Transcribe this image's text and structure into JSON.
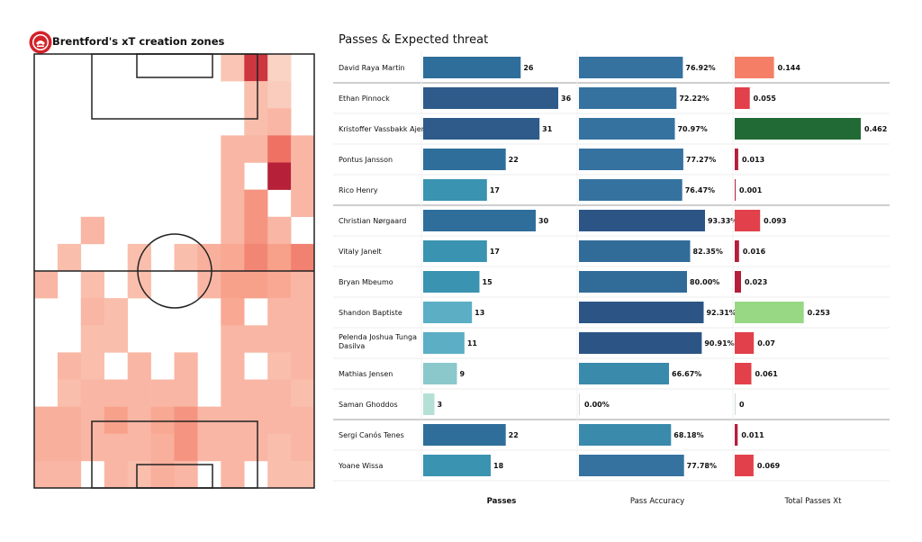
{
  "left_title": "Brentford's xT creation zones",
  "right_title": "Passes & Expected threat",
  "chart_data": [
    {
      "type": "heatmap",
      "title": "Brentford's xT creation zones",
      "grid_cols": 12,
      "grid_rows": 16,
      "values": [
        [
          0,
          0,
          0,
          0,
          0,
          0,
          0,
          0,
          0.25,
          0.88,
          0.15,
          0
        ],
        [
          0,
          0,
          0,
          0,
          0,
          0,
          0,
          0,
          0,
          0.3,
          0.2,
          0
        ],
        [
          0,
          0,
          0,
          0,
          0,
          0,
          0,
          0,
          0,
          0.3,
          0.35,
          0
        ],
        [
          0,
          0,
          0,
          0,
          0,
          0,
          0,
          0,
          0.35,
          0.35,
          0.68,
          0.35
        ],
        [
          0,
          0,
          0,
          0,
          0,
          0,
          0,
          0,
          0.35,
          0,
          0.95,
          0.35
        ],
        [
          0,
          0,
          0,
          0,
          0,
          0,
          0,
          0,
          0.35,
          0.55,
          0,
          0.35
        ],
        [
          0,
          0,
          0.35,
          0,
          0,
          0,
          0,
          0,
          0.35,
          0.55,
          0.35,
          0
        ],
        [
          0,
          0.3,
          0,
          0,
          0.3,
          0,
          0.3,
          0.4,
          0.45,
          0.6,
          0.5,
          0.62
        ],
        [
          0.35,
          0,
          0.3,
          0,
          0.3,
          0,
          0,
          0.35,
          0.5,
          0.5,
          0.45,
          0.35
        ],
        [
          0,
          0,
          0.35,
          0.3,
          0,
          0,
          0,
          0,
          0.45,
          0,
          0.35,
          0.35
        ],
        [
          0,
          0,
          0.3,
          0.3,
          0,
          0,
          0,
          0,
          0.35,
          0.35,
          0.35,
          0.35
        ],
        [
          0,
          0.35,
          0.3,
          0,
          0.35,
          0,
          0.35,
          0,
          0.35,
          0,
          0.3,
          0.35
        ],
        [
          0,
          0.3,
          0.35,
          0.35,
          0.35,
          0.35,
          0.35,
          0,
          0.35,
          0.35,
          0.35,
          0.3
        ],
        [
          0.4,
          0.4,
          0.35,
          0.5,
          0.35,
          0.45,
          0.55,
          0.35,
          0.35,
          0.35,
          0.35,
          0.35
        ],
        [
          0.4,
          0.4,
          0.35,
          0.35,
          0.35,
          0.4,
          0.55,
          0.35,
          0.35,
          0.35,
          0.3,
          0.35
        ],
        [
          0.35,
          0.35,
          0,
          0.35,
          0.3,
          0.4,
          0.35,
          0,
          0.35,
          0,
          0.3,
          0.3
        ]
      ],
      "values_lower": [
        [
          0.35,
          0.35,
          0,
          0.35,
          0.35,
          0.35,
          0.4,
          0,
          0.35,
          0,
          0.35,
          0.35
        ],
        [
          0.35,
          0.35,
          0.35,
          0.35,
          0.35,
          0,
          0.35,
          0,
          0.35,
          0.35,
          0.35,
          0.35
        ],
        [
          0,
          0.35,
          0.35,
          0.35,
          0.35,
          0,
          0.35,
          0.35,
          0,
          0,
          0.3,
          0.35
        ],
        [
          0.35,
          0.35,
          0,
          0.35,
          0.35,
          0.45,
          0.35,
          0.35,
          0.35,
          0.35,
          0.35,
          0.35
        ],
        [
          0.35,
          0.3,
          0.35,
          0.35,
          0.4,
          0.4,
          0.35,
          0.35,
          0.35,
          0,
          0.35,
          0.35
        ],
        [
          0.35,
          0,
          0.35,
          0.35,
          0.4,
          0.35,
          0.35,
          0.35,
          0.35,
          0,
          0.35,
          0.35
        ],
        [
          0.35,
          0.35,
          0.35,
          0.35,
          0.35,
          0.35,
          0.35,
          0.35,
          0.3,
          0,
          0.3,
          0.35
        ],
        [
          0,
          0.35,
          0.35,
          0.35,
          0.35,
          0.35,
          0.4,
          0.35,
          0,
          0,
          0.35,
          0
        ],
        [
          0.35,
          0.35,
          0,
          0.3,
          0.3,
          0.35,
          0.35,
          0.4,
          0.35,
          0,
          0.35,
          0
        ],
        [
          0,
          0.35,
          0,
          0.35,
          0,
          0.35,
          0.35,
          0.35,
          0.35,
          0,
          0.35,
          0
        ]
      ]
    },
    {
      "type": "table",
      "title": "Passes & Expected threat",
      "columns": [
        "Passes",
        "Pass Accuracy",
        "Total Passes Xt"
      ],
      "players": [
        {
          "name": "David Raya Martin",
          "passes": 26,
          "accuracy": "76.92%",
          "acc_value": 76.92,
          "xt": "0.144",
          "xt_value": 0.144
        },
        {
          "name": "Ethan Pinnock",
          "passes": 36,
          "accuracy": "72.22%",
          "acc_value": 72.22,
          "xt": "0.055",
          "xt_value": 0.055
        },
        {
          "name": "Kristoffer Vassbakk Ajer",
          "passes": 31,
          "accuracy": "70.97%",
          "acc_value": 70.97,
          "xt": "0.462",
          "xt_value": 0.462
        },
        {
          "name": "Pontus Jansson",
          "passes": 22,
          "accuracy": "77.27%",
          "acc_value": 77.27,
          "xt": "0.013",
          "xt_value": 0.013
        },
        {
          "name": "Rico Henry",
          "passes": 17,
          "accuracy": "76.47%",
          "acc_value": 76.47,
          "xt": "0.001",
          "xt_value": 0.001
        },
        {
          "name": "Christian Nørgaard",
          "passes": 30,
          "accuracy": "93.33%",
          "acc_value": 93.33,
          "xt": "0.093",
          "xt_value": 0.093
        },
        {
          "name": "Vitaly Janelt",
          "passes": 17,
          "accuracy": "82.35%",
          "acc_value": 82.35,
          "xt": "0.016",
          "xt_value": 0.016
        },
        {
          "name": "Bryan Mbeumo",
          "passes": 15,
          "accuracy": "80.00%",
          "acc_value": 80.0,
          "xt": "0.023",
          "xt_value": 0.023
        },
        {
          "name": "Shandon Baptiste",
          "passes": 13,
          "accuracy": "92.31%",
          "acc_value": 92.31,
          "xt": "0.253",
          "xt_value": 0.253
        },
        {
          "name": "Pelenda Joshua Tunga Dasilva",
          "passes": 11,
          "accuracy": "90.91%",
          "acc_value": 90.91,
          "xt": "0.07",
          "xt_value": 0.07
        },
        {
          "name": "Mathias Jensen",
          "passes": 9,
          "accuracy": "66.67%",
          "acc_value": 66.67,
          "xt": "0.061",
          "xt_value": 0.061
        },
        {
          "name": "Saman Ghoddos",
          "passes": 3,
          "accuracy": "0.00%",
          "acc_value": 0.0,
          "xt": "0",
          "xt_value": 0
        },
        {
          "name": "Sergi Canós Tenes",
          "passes": 22,
          "accuracy": "68.18%",
          "acc_value": 68.18,
          "xt": "0.011",
          "xt_value": 0.011
        },
        {
          "name": "Yoane Wissa",
          "passes": 18,
          "accuracy": "77.78%",
          "acc_value": 77.78,
          "xt": "0.069",
          "xt_value": 0.069
        }
      ],
      "group_breaks_after": [
        0,
        4,
        11
      ],
      "passes_max": 36,
      "accuracy_max": 100,
      "xt_max": 0.462
    }
  ],
  "column_labels": {
    "passes": "Passes",
    "accuracy": "Pass Accuracy",
    "xt": "Total Passes Xt"
  }
}
